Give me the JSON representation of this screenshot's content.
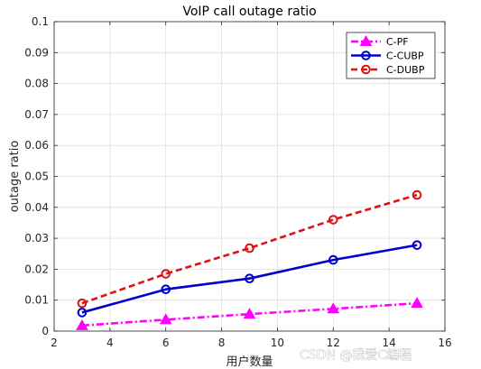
{
  "chart_data": {
    "type": "line",
    "title": "VoIP call outage ratio",
    "xlabel": "用户数量",
    "ylabel": "outage ratio",
    "xlim": [
      2,
      16
    ],
    "ylim": [
      0,
      0.1
    ],
    "xticks": [
      2,
      4,
      6,
      8,
      10,
      12,
      14,
      16
    ],
    "yticks": [
      0,
      0.01,
      0.02,
      0.03,
      0.04,
      0.05,
      0.06,
      0.07,
      0.08,
      0.09,
      0.1
    ],
    "xtick_labels": [
      "2",
      "4",
      "6",
      "8",
      "10",
      "12",
      "14",
      "16"
    ],
    "ytick_labels": [
      "0",
      "0.01",
      "0.02",
      "0.03",
      "0.04",
      "0.05",
      "0.06",
      "0.07",
      "0.08",
      "0.09",
      "0.1"
    ],
    "grid": true,
    "legend_position": "top-right",
    "x": [
      3,
      6,
      9,
      12,
      15
    ],
    "series": [
      {
        "name": "C-PF",
        "values": [
          0.0018,
          0.0037,
          0.0055,
          0.0072,
          0.009
        ],
        "color": "#ff00ff",
        "dash": "dashdot",
        "marker": "triangle"
      },
      {
        "name": "C-CUBP",
        "values": [
          0.006,
          0.0135,
          0.017,
          0.023,
          0.0278
        ],
        "color": "#0000cc",
        "dash": "solid",
        "marker": "circle"
      },
      {
        "name": "C-DUBP",
        "values": [
          0.009,
          0.0185,
          0.0268,
          0.036,
          0.044
        ],
        "color": "#dd1111",
        "dash": "dashed",
        "marker": "circle"
      }
    ]
  },
  "watermark": "CSDN @我爱C编程"
}
